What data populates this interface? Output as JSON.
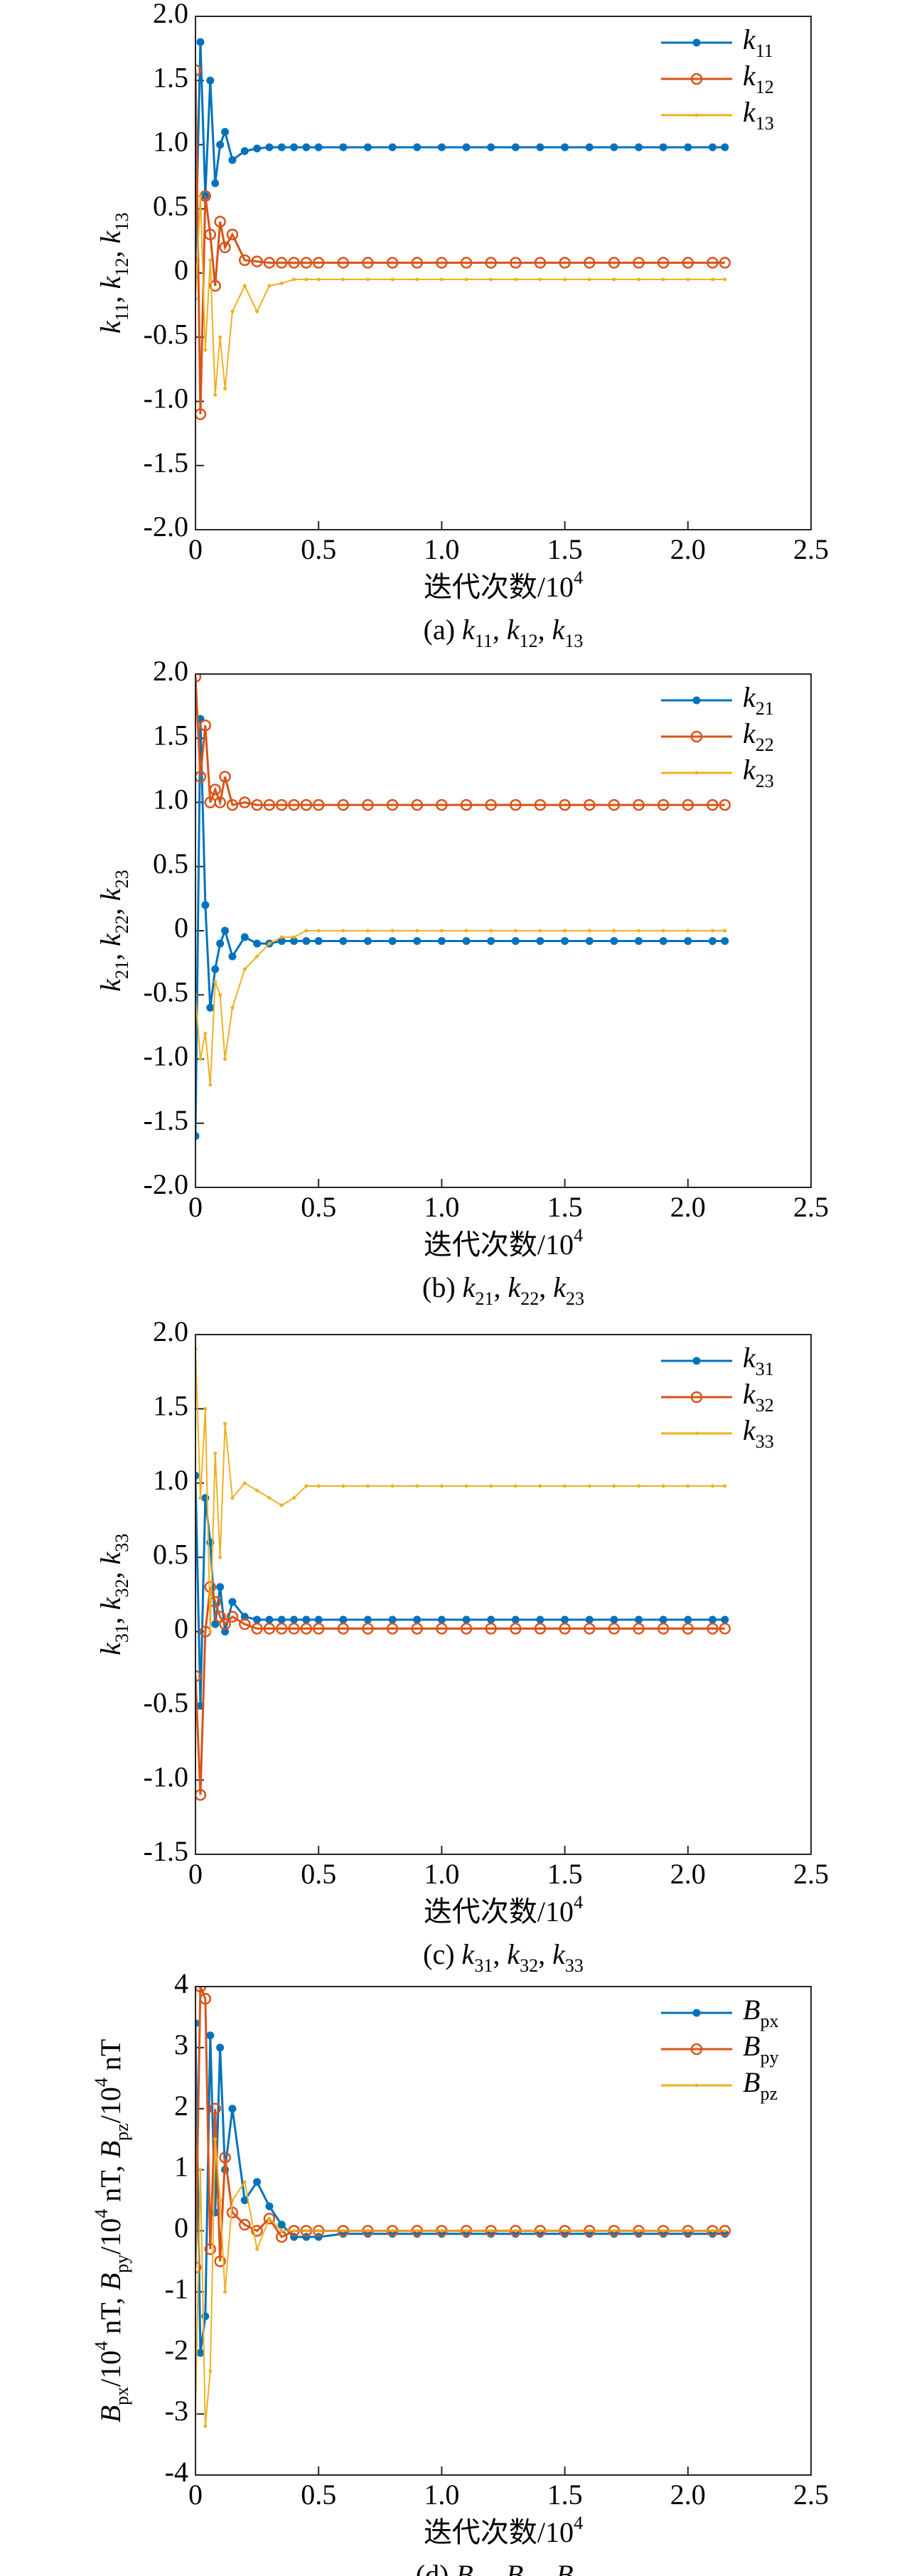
{
  "chart_data": [
    {
      "type": "line",
      "caption": "(a) k_11, k_12, k_13",
      "xlabel": "迭代次数/10^4",
      "ylabel": "k_11, k_12, k_13",
      "xlim": [
        0,
        2.5
      ],
      "xticks": [
        0,
        0.5,
        {
          "value": 1,
          "label": "1.0"
        },
        1.5,
        {
          "value": 2,
          "label": "2.0"
        },
        2.5
      ],
      "ylim": [
        -2,
        2
      ],
      "yticks": [
        {
          "value": 2,
          "label": "2.0"
        },
        1.5,
        {
          "value": 1,
          "label": "1.0"
        },
        0.5,
        0,
        -0.5,
        {
          "value": -1,
          "label": "-1.0"
        },
        -1.5,
        {
          "value": -2,
          "label": "-2.0"
        }
      ],
      "legend": "upper right",
      "x": [
        0,
        0.02,
        0.04,
        0.06,
        0.08,
        0.1,
        0.12,
        0.15,
        0.2,
        0.25,
        0.3,
        0.35,
        0.4,
        0.45,
        0.5,
        0.6,
        0.7,
        0.8,
        0.9,
        1.0,
        1.1,
        1.2,
        1.3,
        1.4,
        1.5,
        1.6,
        1.7,
        1.8,
        1.9,
        2.0,
        2.1,
        2.15
      ],
      "series": [
        {
          "name": "k_11",
          "color": "#0072bd",
          "marker": "star",
          "values": [
            0.1,
            1.8,
            0.6,
            1.5,
            0.7,
            1.0,
            1.1,
            0.88,
            0.95,
            0.97,
            0.98,
            0.98,
            0.98,
            0.98,
            0.98,
            0.98,
            0.98,
            0.98,
            0.98,
            0.98,
            0.98,
            0.98,
            0.98,
            0.98,
            0.98,
            0.98,
            0.98,
            0.98,
            0.98,
            0.98,
            0.98,
            0.98
          ]
        },
        {
          "name": "k_12",
          "color": "#d95319",
          "marker": "circle",
          "values": [
            1.58,
            -1.1,
            0.6,
            0.3,
            -0.1,
            0.4,
            0.2,
            0.3,
            0.1,
            0.09,
            0.08,
            0.08,
            0.08,
            0.08,
            0.08,
            0.08,
            0.08,
            0.08,
            0.08,
            0.08,
            0.08,
            0.08,
            0.08,
            0.08,
            0.08,
            0.08,
            0.08,
            0.08,
            0.08,
            0.08,
            0.08,
            0.08
          ]
        },
        {
          "name": "k_13",
          "color": "#edb120",
          "marker": "point",
          "values": [
            -0.2,
            0.6,
            -0.6,
            0.1,
            -0.95,
            -0.5,
            -0.9,
            -0.3,
            -0.1,
            -0.3,
            -0.1,
            -0.08,
            -0.05,
            -0.05,
            -0.05,
            -0.05,
            -0.05,
            -0.05,
            -0.05,
            -0.05,
            -0.05,
            -0.05,
            -0.05,
            -0.05,
            -0.05,
            -0.05,
            -0.05,
            -0.05,
            -0.05,
            -0.05,
            -0.05,
            -0.05
          ]
        }
      ]
    },
    {
      "type": "line",
      "caption": "(b) k_21, k_22, k_23",
      "xlabel": "迭代次数/10^4",
      "ylabel": "k_21, k_22, k_23",
      "xlim": [
        0,
        2.5
      ],
      "xticks": [
        0,
        0.5,
        {
          "value": 1,
          "label": "1.0"
        },
        1.5,
        {
          "value": 2,
          "label": "2.0"
        },
        2.5
      ],
      "ylim": [
        -2,
        2
      ],
      "yticks": [
        {
          "value": 2,
          "label": "2.0"
        },
        1.5,
        {
          "value": 1,
          "label": "1.0"
        },
        0.5,
        0,
        -0.5,
        {
          "value": -1,
          "label": "-1.0"
        },
        -1.5,
        {
          "value": -2,
          "label": "-2.0"
        }
      ],
      "legend": "upper right",
      "x": [
        0,
        0.02,
        0.04,
        0.06,
        0.08,
        0.1,
        0.12,
        0.15,
        0.2,
        0.25,
        0.3,
        0.35,
        0.4,
        0.45,
        0.5,
        0.6,
        0.7,
        0.8,
        0.9,
        1.0,
        1.1,
        1.2,
        1.3,
        1.4,
        1.5,
        1.6,
        1.7,
        1.8,
        1.9,
        2.0,
        2.1,
        2.15
      ],
      "series": [
        {
          "name": "k_21",
          "color": "#0072bd",
          "marker": "star",
          "values": [
            -1.6,
            1.65,
            0.2,
            -0.6,
            -0.3,
            -0.1,
            0.0,
            -0.2,
            -0.05,
            -0.1,
            -0.1,
            -0.08,
            -0.08,
            -0.08,
            -0.08,
            -0.08,
            -0.08,
            -0.08,
            -0.08,
            -0.08,
            -0.08,
            -0.08,
            -0.08,
            -0.08,
            -0.08,
            -0.08,
            -0.08,
            -0.08,
            -0.08,
            -0.08,
            -0.08,
            -0.08
          ]
        },
        {
          "name": "k_22",
          "color": "#d95319",
          "marker": "circle",
          "values": [
            1.98,
            1.2,
            1.6,
            1.0,
            1.1,
            1.0,
            1.2,
            0.98,
            1.0,
            0.98,
            0.98,
            0.98,
            0.98,
            0.98,
            0.98,
            0.98,
            0.98,
            0.98,
            0.98,
            0.98,
            0.98,
            0.98,
            0.98,
            0.98,
            0.98,
            0.98,
            0.98,
            0.98,
            0.98,
            0.98,
            0.98,
            0.98
          ]
        },
        {
          "name": "k_23",
          "color": "#edb120",
          "marker": "point",
          "values": [
            -0.5,
            -1.0,
            -0.8,
            -1.2,
            -0.4,
            -0.5,
            -1.0,
            -0.6,
            -0.3,
            -0.2,
            -0.1,
            -0.05,
            -0.05,
            0,
            0,
            0,
            0,
            0,
            0,
            0,
            0,
            0,
            0,
            0,
            0,
            0,
            0,
            0,
            0,
            0,
            0,
            0
          ]
        }
      ]
    },
    {
      "type": "line",
      "caption": "(c) k_31, k_32, k_33",
      "xlabel": "迭代次数/10^4",
      "ylabel": "k_31, k_32, k_33",
      "xlim": [
        0,
        2.5
      ],
      "xticks": [
        0,
        0.5,
        {
          "value": 1,
          "label": "1.0"
        },
        1.5,
        {
          "value": 2,
          "label": "2.0"
        },
        2.5
      ],
      "ylim": [
        -1.5,
        2
      ],
      "yticks": [
        {
          "value": 2,
          "label": "2.0"
        },
        1.5,
        {
          "value": 1,
          "label": "1.0"
        },
        0.5,
        0,
        -0.5,
        {
          "value": -1,
          "label": "-1.0"
        },
        -1.5
      ],
      "legend": "upper right",
      "x": [
        0,
        0.02,
        0.04,
        0.06,
        0.08,
        0.1,
        0.12,
        0.15,
        0.2,
        0.25,
        0.3,
        0.35,
        0.4,
        0.45,
        0.5,
        0.6,
        0.7,
        0.8,
        0.9,
        1.0,
        1.1,
        1.2,
        1.3,
        1.4,
        1.5,
        1.6,
        1.7,
        1.8,
        1.9,
        2.0,
        2.1,
        2.15
      ],
      "series": [
        {
          "name": "k_31",
          "color": "#0072bd",
          "marker": "star",
          "values": [
            1.05,
            -0.5,
            0.9,
            0.6,
            0.05,
            0.3,
            0.0,
            0.2,
            0.1,
            0.08,
            0.08,
            0.08,
            0.08,
            0.08,
            0.08,
            0.08,
            0.08,
            0.08,
            0.08,
            0.08,
            0.08,
            0.08,
            0.08,
            0.08,
            0.08,
            0.08,
            0.08,
            0.08,
            0.08,
            0.08,
            0.08,
            0.08
          ]
        },
        {
          "name": "k_32",
          "color": "#d95319",
          "marker": "circle",
          "values": [
            -0.3,
            -1.1,
            0.0,
            0.3,
            0.2,
            0.1,
            0.05,
            0.1,
            0.05,
            0.02,
            0.02,
            0.02,
            0.02,
            0.02,
            0.02,
            0.02,
            0.02,
            0.02,
            0.02,
            0.02,
            0.02,
            0.02,
            0.02,
            0.02,
            0.02,
            0.02,
            0.02,
            0.02,
            0.02,
            0.02,
            0.02,
            0.02
          ]
        },
        {
          "name": "k_33",
          "color": "#edb120",
          "marker": "point",
          "values": [
            1.9,
            0.9,
            1.5,
            0.0,
            1.2,
            0.5,
            1.4,
            0.9,
            1.0,
            0.95,
            0.9,
            0.85,
            0.9,
            0.98,
            0.98,
            0.98,
            0.98,
            0.98,
            0.98,
            0.98,
            0.98,
            0.98,
            0.98,
            0.98,
            0.98,
            0.98,
            0.98,
            0.98,
            0.98,
            0.98,
            0.98,
            0.98
          ]
        }
      ]
    },
    {
      "type": "line",
      "caption": "(d) B_px, B_py, B_pz",
      "xlabel": "迭代次数/10^4",
      "ylabel": "B_px/10^4 nT, B_py/10^4 nT, B_pz/10^4 nT",
      "xlim": [
        0,
        2.5
      ],
      "xticks": [
        0,
        0.5,
        {
          "value": 1,
          "label": "1.0"
        },
        1.5,
        {
          "value": 2,
          "label": "2.0"
        },
        2.5
      ],
      "ylim": [
        -4,
        4
      ],
      "yticks": [
        4,
        3,
        2,
        1,
        0,
        -1,
        -2,
        -3,
        -4
      ],
      "legend": "upper right",
      "x": [
        0,
        0.02,
        0.04,
        0.06,
        0.08,
        0.1,
        0.12,
        0.15,
        0.2,
        0.25,
        0.3,
        0.35,
        0.4,
        0.45,
        0.5,
        0.6,
        0.7,
        0.8,
        0.9,
        1.0,
        1.1,
        1.2,
        1.3,
        1.4,
        1.5,
        1.6,
        1.7,
        1.8,
        1.9,
        2.0,
        2.1,
        2.15
      ],
      "series": [
        {
          "name": "B_px",
          "color": "#0072bd",
          "marker": "star",
          "values": [
            3.4,
            -2.0,
            -1.4,
            3.2,
            0.3,
            3.0,
            1.0,
            2.0,
            0.5,
            0.8,
            0.4,
            0.1,
            -0.1,
            -0.1,
            -0.1,
            -0.05,
            -0.05,
            -0.05,
            -0.05,
            -0.05,
            -0.05,
            -0.05,
            -0.05,
            -0.05,
            -0.05,
            -0.05,
            -0.05,
            -0.05,
            -0.05,
            -0.05,
            -0.05,
            -0.05
          ]
        },
        {
          "name": "B_py",
          "color": "#d95319",
          "marker": "circle",
          "values": [
            -0.6,
            4.0,
            3.8,
            -0.3,
            2.0,
            -0.5,
            1.2,
            0.3,
            0.1,
            0.0,
            0.2,
            -0.1,
            0,
            0,
            0,
            0,
            0,
            0,
            0,
            0,
            0,
            0,
            0,
            0,
            0,
            0,
            0,
            0,
            0,
            0,
            0,
            0
          ]
        },
        {
          "name": "B_pz",
          "color": "#edb120",
          "marker": "point",
          "values": [
            -3.0,
            1.0,
            -3.2,
            -2.3,
            1.5,
            0.5,
            -1.0,
            0.5,
            0.8,
            -0.3,
            0.2,
            0,
            0,
            0,
            0,
            0,
            0,
            0,
            0,
            0,
            0,
            0,
            0,
            0,
            0,
            0,
            0,
            0,
            0,
            0,
            0,
            0
          ]
        }
      ]
    }
  ]
}
